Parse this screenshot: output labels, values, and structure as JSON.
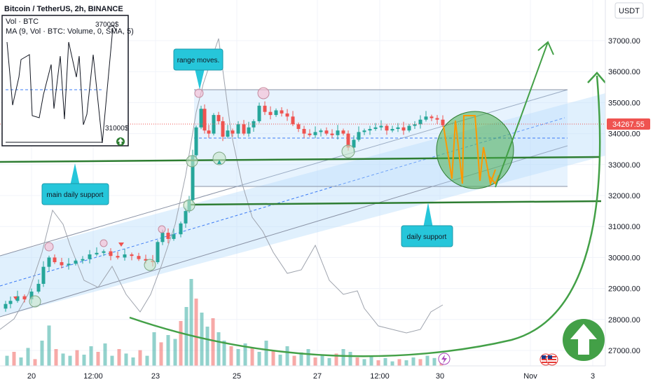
{
  "header": {
    "symbol_line": "Bitcoin / TetherUS, 2h, BINANCE",
    "vol_line": "Vol · BTC",
    "ma_line": "MA (9, Vol · BTC: Volume, 0, SMA, 5)",
    "currency_badge": "USDT"
  },
  "annotations": {
    "range_moves": "range moves.",
    "main_daily_support": "main daily support",
    "daily_support": "daily support",
    "inset_high": "37000$",
    "inset_low": "31000$"
  },
  "icons": {
    "arrow_badge": "up-arrow-icon",
    "flags": "us-flag-icon",
    "lightning": "lightning-icon",
    "mini_arrow": "up-arrow-icon"
  },
  "colors": {
    "bull": "#26a69a",
    "bear": "#ef5350",
    "channel_fill": "#bbdefb",
    "support_line": "#2e7d32",
    "forecast": "#ff9800",
    "callout": "#26c6da",
    "price_tag": "#ef5350"
  },
  "chart_data": {
    "type": "candlestick",
    "title": "Bitcoin / TetherUS, 2h, BINANCE",
    "y_ticks": [
      27000,
      28000,
      29000,
      30000,
      31000,
      32000,
      33000,
      34000,
      35000,
      36000,
      37000
    ],
    "y_tick_labels": [
      "27000.00",
      "28000.00",
      "29000.00",
      "30000.00",
      "31000.00",
      "32000.00",
      "33000.00",
      "34000.00",
      "35000.00",
      "36000.00",
      "37000.00"
    ],
    "ylim": [
      26500,
      38000
    ],
    "x_tick_labels": [
      "20",
      "12:00",
      "23",
      "25",
      "27",
      "12:00",
      "30",
      "Nov",
      "3"
    ],
    "current_price": 34267.55,
    "current_price_label": "34267.55",
    "price_path": [
      [
        0,
        28350
      ],
      [
        8,
        28500
      ],
      [
        15,
        28600
      ],
      [
        25,
        28750
      ],
      [
        35,
        28650
      ],
      [
        45,
        28900
      ],
      [
        55,
        29150
      ],
      [
        62,
        29700
      ],
      [
        70,
        30000
      ],
      [
        78,
        29850
      ],
      [
        88,
        29750
      ],
      [
        98,
        29800
      ],
      [
        108,
        29900
      ],
      [
        118,
        29950
      ],
      [
        128,
        30100
      ],
      [
        138,
        30150
      ],
      [
        148,
        30200
      ],
      [
        158,
        30050
      ],
      [
        168,
        30000
      ],
      [
        178,
        30100
      ],
      [
        188,
        30050
      ],
      [
        198,
        29950
      ],
      [
        208,
        29900
      ],
      [
        218,
        29850
      ],
      [
        225,
        30500
      ],
      [
        232,
        30800
      ],
      [
        240,
        30600
      ],
      [
        248,
        30750
      ],
      [
        258,
        31100
      ],
      [
        265,
        31500
      ],
      [
        270,
        31850
      ],
      [
        275,
        33300
      ],
      [
        280,
        34200
      ],
      [
        287,
        34800
      ],
      [
        292,
        34100
      ],
      [
        298,
        34000
      ],
      [
        305,
        34600
      ],
      [
        312,
        34400
      ],
      [
        318,
        33900
      ],
      [
        325,
        34100
      ],
      [
        332,
        34000
      ],
      [
        340,
        34300
      ],
      [
        348,
        34000
      ],
      [
        355,
        34200
      ],
      [
        362,
        34400
      ],
      [
        370,
        34900
      ],
      [
        378,
        34700
      ],
      [
        386,
        34600
      ],
      [
        394,
        34750
      ],
      [
        402,
        34650
      ],
      [
        410,
        34550
      ],
      [
        418,
        34300
      ],
      [
        426,
        34150
      ],
      [
        434,
        34000
      ],
      [
        442,
        33950
      ],
      [
        450,
        34050
      ],
      [
        458,
        34100
      ],
      [
        466,
        34000
      ],
      [
        474,
        33950
      ],
      [
        482,
        34100
      ],
      [
        490,
        34000
      ],
      [
        497,
        33550
      ],
      [
        505,
        33800
      ],
      [
        512,
        34050
      ],
      [
        520,
        34100
      ],
      [
        528,
        34150
      ],
      [
        536,
        34200
      ],
      [
        544,
        34250
      ],
      [
        552,
        34100
      ],
      [
        560,
        34150
      ],
      [
        568,
        34200
      ],
      [
        576,
        34100
      ],
      [
        584,
        34250
      ],
      [
        592,
        34300
      ],
      [
        600,
        34450
      ],
      [
        608,
        34550
      ],
      [
        616,
        34500
      ],
      [
        624,
        34450
      ],
      [
        632,
        34268
      ]
    ],
    "volume": [
      {
        "x": 10,
        "v": 18
      },
      {
        "x": 20,
        "v": 25
      },
      {
        "x": 30,
        "v": 15
      },
      {
        "x": 40,
        "v": 32
      },
      {
        "x": 50,
        "v": 12
      },
      {
        "x": 60,
        "v": 45
      },
      {
        "x": 70,
        "v": 72
      },
      {
        "x": 80,
        "v": 30
      },
      {
        "x": 90,
        "v": 22
      },
      {
        "x": 100,
        "v": 18
      },
      {
        "x": 110,
        "v": 28
      },
      {
        "x": 120,
        "v": 20
      },
      {
        "x": 130,
        "v": 35
      },
      {
        "x": 140,
        "v": 25
      },
      {
        "x": 150,
        "v": 40
      },
      {
        "x": 160,
        "v": 18
      },
      {
        "x": 170,
        "v": 30
      },
      {
        "x": 180,
        "v": 22
      },
      {
        "x": 190,
        "v": 15
      },
      {
        "x": 200,
        "v": 28
      },
      {
        "x": 210,
        "v": 18
      },
      {
        "x": 220,
        "v": 60
      },
      {
        "x": 230,
        "v": 42
      },
      {
        "x": 240,
        "v": 55
      },
      {
        "x": 250,
        "v": 48
      },
      {
        "x": 258,
        "v": 80
      },
      {
        "x": 266,
        "v": 105
      },
      {
        "x": 273,
        "v": 155
      },
      {
        "x": 280,
        "v": 120
      },
      {
        "x": 288,
        "v": 95
      },
      {
        "x": 296,
        "v": 70
      },
      {
        "x": 304,
        "v": 85
      },
      {
        "x": 312,
        "v": 60
      },
      {
        "x": 320,
        "v": 45
      },
      {
        "x": 330,
        "v": 35
      },
      {
        "x": 340,
        "v": 30
      },
      {
        "x": 350,
        "v": 40
      },
      {
        "x": 360,
        "v": 32
      },
      {
        "x": 370,
        "v": 25
      },
      {
        "x": 380,
        "v": 45
      },
      {
        "x": 390,
        "v": 28
      },
      {
        "x": 400,
        "v": 20
      },
      {
        "x": 410,
        "v": 35
      },
      {
        "x": 420,
        "v": 18
      },
      {
        "x": 430,
        "v": 24
      },
      {
        "x": 440,
        "v": 30
      },
      {
        "x": 450,
        "v": 15
      },
      {
        "x": 460,
        "v": 20
      },
      {
        "x": 470,
        "v": 14
      },
      {
        "x": 480,
        "v": 22
      },
      {
        "x": 490,
        "v": 30
      },
      {
        "x": 500,
        "v": 25
      },
      {
        "x": 510,
        "v": 15
      },
      {
        "x": 520,
        "v": 12
      },
      {
        "x": 530,
        "v": 18
      },
      {
        "x": 540,
        "v": 10
      },
      {
        "x": 550,
        "v": 14
      },
      {
        "x": 560,
        "v": 8
      },
      {
        "x": 570,
        "v": 12
      },
      {
        "x": 580,
        "v": 10
      },
      {
        "x": 590,
        "v": 15
      },
      {
        "x": 600,
        "v": 12
      },
      {
        "x": 610,
        "v": 18
      },
      {
        "x": 620,
        "v": 14
      },
      {
        "x": 630,
        "v": 10
      }
    ]
  }
}
